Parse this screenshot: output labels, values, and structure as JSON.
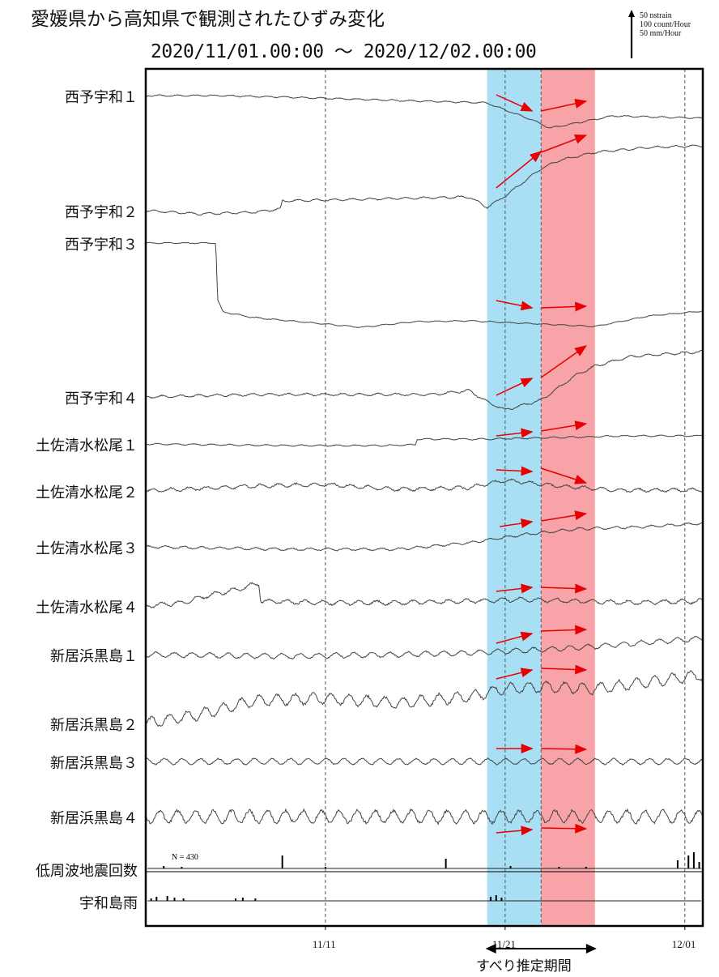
{
  "figure": {
    "title": "愛媛県から高知県で観測されたひずみ変化",
    "period": "2020/11/01.00:00 〜 2020/12/02.00:00",
    "scale_lines": [
      "50 nstrain",
      "100 count/Hour",
      "50 mm/Hour"
    ],
    "slip_label": "すべり推定期間",
    "eq_count_text": "N =   430"
  },
  "colors": {
    "blue_band": "#a8dff4",
    "red_band": "#f8a3a7",
    "arrow": "#e60000",
    "trace": "#444444"
  },
  "chart_data": {
    "type": "line",
    "x_range": [
      "2020-11-01",
      "2020-12-02"
    ],
    "x_ticks": [
      {
        "label": "11/11",
        "date": "2020-11-11"
      },
      {
        "label": "11/21",
        "date": "2020-11-21"
      },
      {
        "label": "12/01",
        "date": "2020-12-01"
      }
    ],
    "bands": [
      {
        "color": "blue",
        "start": "2020-11-20",
        "end": "2020-11-23"
      },
      {
        "color": "red",
        "start": "2020-11-23",
        "end": "2020-11-26"
      }
    ],
    "vertical_dashed_lines": [
      "2020-11-11",
      "2020-11-21",
      "2020-11-23",
      "2020-12-01"
    ],
    "series": [
      {
        "name": "西予宇和１",
        "wave": 0.8,
        "noise": 0.8,
        "points": [
          [
            0,
            118
          ],
          [
            4,
            118
          ],
          [
            8,
            120
          ],
          [
            14,
            124
          ],
          [
            19,
            127
          ],
          [
            20.5,
            140
          ],
          [
            21.5,
            148
          ],
          [
            22.5,
            158
          ],
          [
            23,
            156
          ],
          [
            26,
            143
          ],
          [
            31,
            146
          ]
        ]
      },
      {
        "name": "西予宇和２",
        "wave": 1.2,
        "noise": 1.0,
        "points": [
          [
            0,
            260
          ],
          [
            3,
            264
          ],
          [
            6,
            262
          ],
          [
            7.5,
            258
          ],
          [
            7.6,
            248
          ],
          [
            12,
            246
          ],
          [
            18,
            243
          ],
          [
            19,
            256
          ],
          [
            20,
            242
          ],
          [
            21,
            225
          ],
          [
            22,
            208
          ],
          [
            23,
            198
          ],
          [
            25,
            188
          ],
          [
            28,
            182
          ],
          [
            31,
            180
          ]
        ]
      },
      {
        "name": "西予宇和３",
        "wave": 0.6,
        "noise": 0.6,
        "points": [
          [
            0,
            300
          ],
          [
            3.9,
            300
          ],
          [
            4,
            370
          ],
          [
            4.3,
            385
          ],
          [
            6,
            392
          ],
          [
            9,
            398
          ],
          [
            12,
            404
          ],
          [
            15,
            397
          ],
          [
            18,
            396
          ],
          [
            20,
            398
          ],
          [
            23,
            401
          ],
          [
            25,
            403
          ],
          [
            28,
            390
          ],
          [
            31,
            384
          ]
        ]
      },
      {
        "name": "西予宇和４",
        "wave": 1.4,
        "noise": 1.2,
        "points": [
          [
            0,
            490
          ],
          [
            6,
            487
          ],
          [
            12,
            487
          ],
          [
            16,
            487
          ],
          [
            18,
            482
          ],
          [
            19,
            496
          ],
          [
            20,
            506
          ],
          [
            22,
            494
          ],
          [
            23,
            478
          ],
          [
            24,
            462
          ],
          [
            25,
            452
          ],
          [
            27,
            440
          ],
          [
            31,
            434
          ]
        ]
      },
      {
        "name": "土佐清水松尾１",
        "wave": 0.8,
        "noise": 0.8,
        "points": [
          [
            0,
            548
          ],
          [
            8,
            550
          ],
          [
            13,
            550
          ],
          [
            15,
            549
          ],
          [
            15.1,
            542
          ],
          [
            19,
            542
          ],
          [
            23,
            540
          ],
          [
            27,
            538
          ],
          [
            31,
            538
          ]
        ]
      },
      {
        "name": "土佐清水松尾２",
        "wave": 2.0,
        "noise": 1.8,
        "points": [
          [
            0,
            606
          ],
          [
            6,
            600
          ],
          [
            10,
            598
          ],
          [
            14,
            604
          ],
          [
            18,
            602
          ],
          [
            20,
            593
          ],
          [
            23,
            600
          ],
          [
            26,
            605
          ],
          [
            28,
            605
          ],
          [
            31,
            605
          ]
        ]
      },
      {
        "name": "土佐清水松尾３",
        "wave": 1.4,
        "noise": 1.2,
        "points": [
          [
            0,
            675
          ],
          [
            8,
            678
          ],
          [
            14,
            678
          ],
          [
            18,
            670
          ],
          [
            21,
            660
          ],
          [
            24,
            653
          ],
          [
            28,
            650
          ],
          [
            31,
            646
          ]
        ]
      },
      {
        "name": "土佐清水松尾４",
        "wave": 2.5,
        "noise": 2.0,
        "points": [
          [
            0,
            748
          ],
          [
            2,
            744
          ],
          [
            3.5,
            735
          ],
          [
            5,
            728
          ],
          [
            6.3,
            720
          ],
          [
            6.4,
            742
          ],
          [
            10,
            744
          ],
          [
            14,
            744
          ],
          [
            18,
            742
          ],
          [
            21,
            740
          ],
          [
            24,
            742
          ],
          [
            27,
            744
          ],
          [
            31,
            742
          ]
        ]
      },
      {
        "name": "新居浜黒島１",
        "wave": 3.0,
        "noise": 1.5,
        "points": [
          [
            0,
            808
          ],
          [
            8,
            810
          ],
          [
            14,
            808
          ],
          [
            18,
            806
          ],
          [
            20,
            804
          ],
          [
            22,
            802
          ],
          [
            25,
            798
          ],
          [
            28,
            793
          ],
          [
            31,
            788
          ]
        ]
      },
      {
        "name": "新居浜黒島２",
        "wave": 6.5,
        "noise": 3.0,
        "points": [
          [
            0,
            893
          ],
          [
            3,
            882
          ],
          [
            6,
            865
          ],
          [
            10,
            862
          ],
          [
            14,
            868
          ],
          [
            18,
            860
          ],
          [
            20,
            850
          ],
          [
            22,
            848
          ],
          [
            25,
            850
          ],
          [
            28,
            842
          ],
          [
            31,
            833
          ]
        ]
      },
      {
        "name": "新居浜黒島３",
        "wave": 3.5,
        "noise": 1.5,
        "points": [
          [
            0,
            940
          ],
          [
            31,
            940
          ]
        ]
      },
      {
        "name": "新居浜黒島４",
        "wave": 7.5,
        "noise": 3.5,
        "points": [
          [
            0,
            1008
          ],
          [
            31,
            1008
          ]
        ]
      },
      {
        "name": "低周波地震回数",
        "type": "bar",
        "baseline_y": 1072,
        "bars": [
          [
            1,
            3
          ],
          [
            2,
            2
          ],
          [
            7.6,
            16
          ],
          [
            10,
            2
          ],
          [
            16.7,
            12
          ],
          [
            20.3,
            3
          ],
          [
            23,
            2
          ],
          [
            24.5,
            2
          ],
          [
            29.6,
            10
          ],
          [
            30.2,
            16
          ],
          [
            30.5,
            20
          ],
          [
            30.8,
            8
          ]
        ]
      },
      {
        "name": "宇和島雨",
        "type": "bar",
        "baseline_y": 1112,
        "bars": [
          [
            0.3,
            3
          ],
          [
            0.6,
            5
          ],
          [
            1.2,
            6
          ],
          [
            1.6,
            4
          ],
          [
            2.1,
            3
          ],
          [
            5.0,
            3
          ],
          [
            5.4,
            4
          ],
          [
            6.1,
            3
          ],
          [
            19.2,
            5
          ],
          [
            19.5,
            7
          ],
          [
            19.8,
            4
          ]
        ]
      }
    ],
    "arrows_note": "Red arrows indicate trend before and during slip period",
    "arrows": [
      [
        [
          19.5,
          117
        ],
        [
          21.5,
          137
        ]
      ],
      [
        [
          22.0,
          137
        ],
        [
          24.5,
          125
        ]
      ],
      [
        [
          19.5,
          232
        ],
        [
          22.0,
          187
        ]
      ],
      [
        [
          22.0,
          188
        ],
        [
          24.5,
          167
        ]
      ],
      [
        [
          19.5,
          371
        ],
        [
          21.5,
          380
        ]
      ],
      [
        [
          22.0,
          380
        ],
        [
          24.5,
          378
        ]
      ],
      [
        [
          19.5,
          488
        ],
        [
          21.5,
          467
        ]
      ],
      [
        [
          22.0,
          466
        ],
        [
          24.5,
          427
        ]
      ],
      [
        [
          19.5,
          538
        ],
        [
          21.5,
          533
        ]
      ],
      [
        [
          22.0,
          532
        ],
        [
          24.5,
          523
        ]
      ],
      [
        [
          19.5,
          580
        ],
        [
          21.5,
          582
        ]
      ],
      [
        [
          22.0,
          578
        ],
        [
          24.5,
          596
        ]
      ],
      [
        [
          19.7,
          650
        ],
        [
          21.5,
          644
        ]
      ],
      [
        [
          22.0,
          643
        ],
        [
          24.5,
          634
        ]
      ],
      [
        [
          19.5,
          730
        ],
        [
          21.5,
          725
        ]
      ],
      [
        [
          22.0,
          725
        ],
        [
          24.5,
          727
        ]
      ],
      [
        [
          19.5,
          794
        ],
        [
          21.5,
          782
        ]
      ],
      [
        [
          22.0,
          779
        ],
        [
          24.5,
          777
        ]
      ],
      [
        [
          19.5,
          838
        ],
        [
          21.5,
          827
        ]
      ],
      [
        [
          22.0,
          825
        ],
        [
          24.5,
          827
        ]
      ],
      [
        [
          19.5,
          924
        ],
        [
          21.5,
          924
        ]
      ],
      [
        [
          22.0,
          924
        ],
        [
          24.5,
          925
        ]
      ],
      [
        [
          19.5,
          1028
        ],
        [
          21.5,
          1024
        ]
      ],
      [
        [
          22.0,
          1022
        ],
        [
          24.5,
          1023
        ]
      ]
    ]
  }
}
